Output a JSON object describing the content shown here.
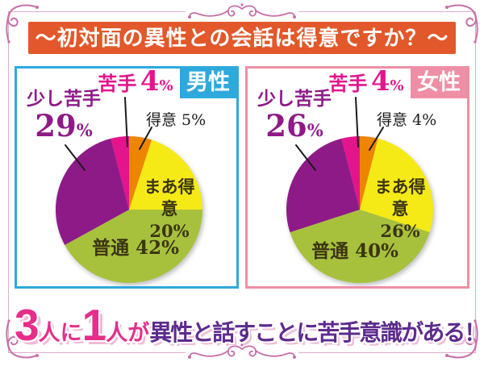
{
  "frame": {
    "line_color": "#dcaecb",
    "ornament_color": "#c76fa8"
  },
  "title": {
    "text": "〜初対面の異性との会話は得意ですか？〜",
    "bg": "#e2582a",
    "color": "#ffffff"
  },
  "panels": [
    {
      "tag": "男性",
      "tag_bg": "#2fa9dc",
      "border_color": "#2fa9dc",
      "nigate_label": "苦手",
      "nigate_value": "4",
      "nigate_unit": "%",
      "sukoshi_label": "少し苦手",
      "sukoshi_value": "29",
      "sukoshi_unit": "%",
      "tokui_text": "得意 5%",
      "maa_line1": "まあ得意",
      "maa_line2": "20%",
      "futsu_text": "普通 42%"
    },
    {
      "tag": "女性",
      "tag_bg": "#ee8fa5",
      "border_color": "#ee8fa5",
      "nigate_label": "苦手",
      "nigate_value": "4",
      "nigate_unit": "%",
      "sukoshi_label": "少し苦手",
      "sukoshi_value": "26",
      "sukoshi_unit": "%",
      "tokui_text": "得意 4%",
      "maa_line1": "まあ得意",
      "maa_line2": "26%",
      "futsu_text": "普通 40%"
    }
  ],
  "chart_data": [
    {
      "type": "pie",
      "title": "男性",
      "categories": [
        "得意",
        "まあ得意",
        "普通",
        "少し苦手",
        "苦手"
      ],
      "values": [
        5,
        20,
        42,
        29,
        4
      ],
      "colors": [
        "#ee8500",
        "#f5ea16",
        "#a7c13d",
        "#8e1a87",
        "#e4148c"
      ],
      "start_angle_deg": 0,
      "direction": "clockwise",
      "legend": "none",
      "labels": [
        "得意 5%",
        "まあ得意 20%",
        "普通 42%",
        "少し苦手 29%",
        "苦手 4%"
      ]
    },
    {
      "type": "pie",
      "title": "女性",
      "categories": [
        "得意",
        "まあ得意",
        "普通",
        "少し苦手",
        "苦手"
      ],
      "values": [
        4,
        26,
        40,
        26,
        4
      ],
      "colors": [
        "#ee8500",
        "#f5ea16",
        "#a7c13d",
        "#8e1a87",
        "#e4148c"
      ],
      "start_angle_deg": 0,
      "direction": "clockwise",
      "legend": "none",
      "labels": [
        "得意 4%",
        "まあ得意 26%",
        "普通 40%",
        "少し苦手 26%",
        "苦手 4%"
      ]
    }
  ],
  "footer": {
    "segments": [
      {
        "text": "3",
        "style": "num"
      },
      {
        "text": "人に",
        "style": "pink"
      },
      {
        "text": "1",
        "style": "num"
      },
      {
        "text": "人",
        "style": "pink"
      },
      {
        "text": "が",
        "style": "pink"
      },
      {
        "text": "異性と話すことに苦手意識がある！",
        "style": "purple"
      }
    ]
  }
}
